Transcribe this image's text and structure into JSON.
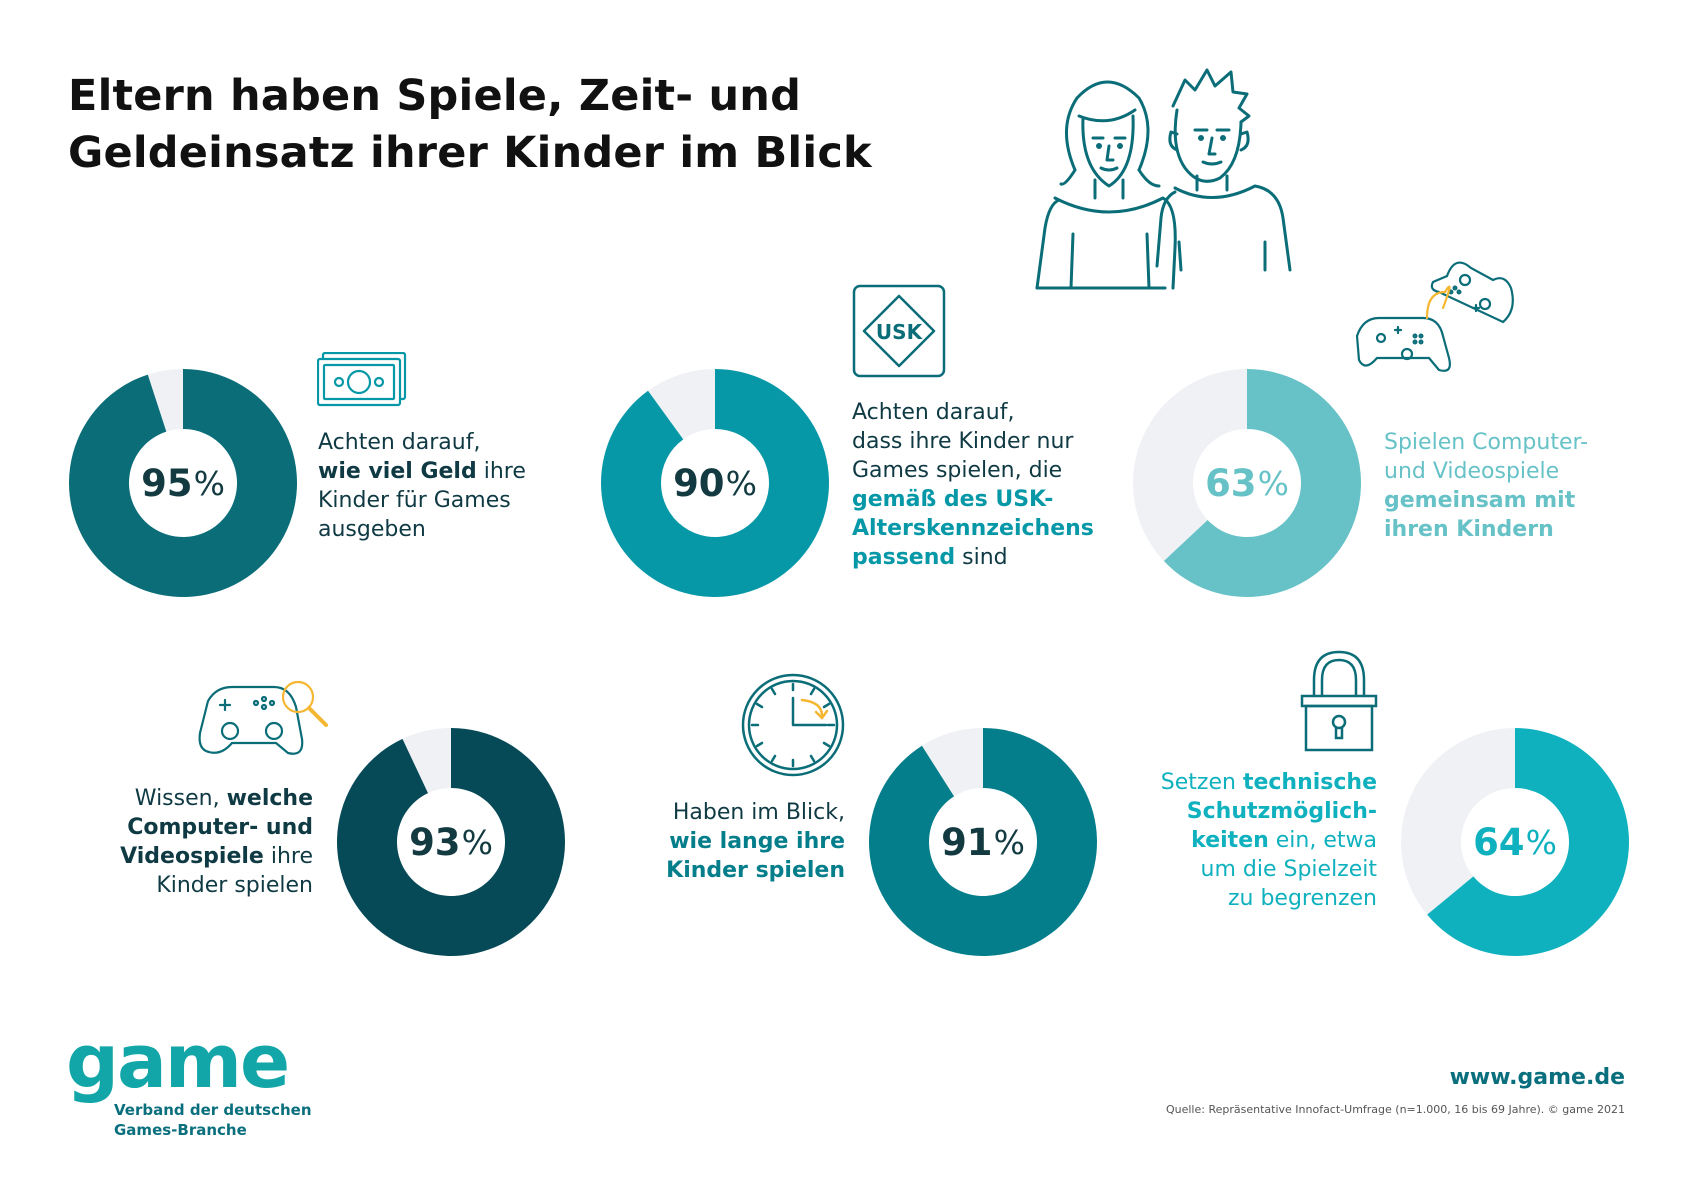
{
  "title": {
    "line1": "Eltern haben Spiele, Zeit- und",
    "line2": "Geldeinsatz ihrer Kinder im Blick"
  },
  "percent_symbol": "%",
  "chart_data": [
    {
      "type": "pie",
      "value": 95,
      "label": "95",
      "color": "#0a6d78",
      "remainder_color": "#eff1f5",
      "description": [
        {
          "text": "Achten darauf,",
          "bold": false
        },
        {
          "text": "wie viel Geld",
          "bold": true
        },
        {
          "text": " ihre",
          "bold": false
        },
        {
          "text": "Kinder für Games",
          "bold": false
        },
        {
          "text": "ausgeben",
          "bold": false
        }
      ]
    },
    {
      "type": "pie",
      "value": 90,
      "label": "90",
      "color": "#0798a8",
      "remainder_color": "#eff1f5",
      "description": [
        {
          "text": "Achten darauf,",
          "bold": false
        },
        {
          "text": "dass ihre Kinder nur",
          "bold": false
        },
        {
          "text": "Games spielen, die",
          "bold": false
        },
        {
          "text": "gemäß des USK-",
          "bold": true
        },
        {
          "text": "Alterskennzeichens",
          "bold": true
        },
        {
          "text": "passend",
          "bold": true
        },
        {
          "text": " sind",
          "bold": false
        }
      ]
    },
    {
      "type": "pie",
      "value": 63,
      "label": "63",
      "color": "#67c2c7",
      "remainder_color": "#eff1f5",
      "description": [
        {
          "text": "Spielen Computer-",
          "bold": false
        },
        {
          "text": "und Videospiele",
          "bold": false
        },
        {
          "text": "gemeinsam mit",
          "bold": true
        },
        {
          "text": "ihren Kindern",
          "bold": true
        }
      ]
    },
    {
      "type": "pie",
      "value": 93,
      "label": "93",
      "color": "#064957",
      "remainder_color": "#eff1f5",
      "description": [
        {
          "text": "Wissen, ",
          "bold": false
        },
        {
          "text": "welche",
          "bold": true
        },
        {
          "text": "Computer- und",
          "bold": true
        },
        {
          "text": "Videospiele",
          "bold": true
        },
        {
          "text": " ihre",
          "bold": false
        },
        {
          "text": "Kinder spielen",
          "bold": false
        }
      ]
    },
    {
      "type": "pie",
      "value": 91,
      "label": "91",
      "color": "#057e8b",
      "remainder_color": "#eff1f5",
      "description": [
        {
          "text": "Haben im Blick,",
          "bold": false
        },
        {
          "text": "wie lange ihre",
          "bold": true
        },
        {
          "text": "Kinder spielen",
          "bold": true
        }
      ]
    },
    {
      "type": "pie",
      "value": 64,
      "label": "64",
      "color": "#10b1bf",
      "remainder_color": "#eff1f5",
      "description": [
        {
          "text": "Setzen ",
          "bold": false
        },
        {
          "text": "technische",
          "bold": true
        },
        {
          "text": "Schutzmöglich-",
          "bold": true
        },
        {
          "text": "keiten",
          "bold": true
        },
        {
          "text": " ein, etwa",
          "bold": false
        },
        {
          "text": "um die Spielzeit",
          "bold": false
        },
        {
          "text": "zu begrenzen",
          "bold": false
        }
      ]
    }
  ],
  "icons": {
    "usk_label": "USK",
    "names": [
      "parents-icon",
      "money-icon",
      "usk-icon",
      "controllers-icon",
      "controller-search-icon",
      "clock-icon",
      "lock-icon"
    ],
    "line_color": "#0a6d78",
    "accent_color": "#f5b731"
  },
  "footer": {
    "logo": "game",
    "sub_line1": "Verband der deutschen",
    "sub_line2": "Games-Branche",
    "url": "www.game.de",
    "source": "Quelle: Repräsentative Innofact-Umfrage (n=1.000, 16 bis 69 Jahre). © game 2021"
  }
}
